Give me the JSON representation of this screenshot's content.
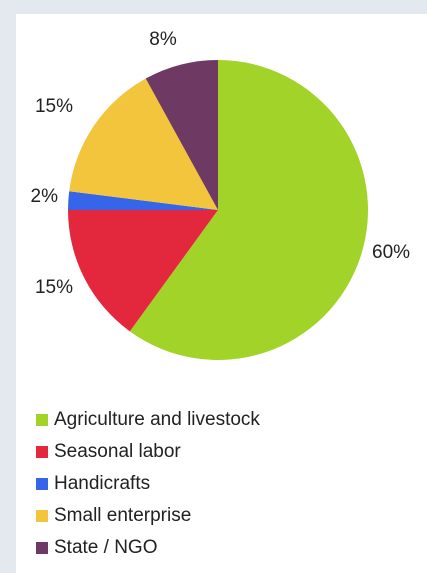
{
  "chart_data": {
    "type": "pie",
    "title": "",
    "slices": [
      {
        "label": "Agriculture and livestock",
        "value": 60,
        "value_label": "60%",
        "color": "#a2d329"
      },
      {
        "label": "Seasonal labor",
        "value": 15,
        "value_label": "15%",
        "color": "#e3283e"
      },
      {
        "label": "Handicrafts",
        "value": 2,
        "value_label": "2%",
        "color": "#3765ea"
      },
      {
        "label": "Small enterprise",
        "value": 15,
        "value_label": "15%",
        "color": "#f2c53d"
      },
      {
        "label": "State / NGO",
        "value": 8,
        "value_label": "8%",
        "color": "#6e3a63"
      }
    ],
    "start_angle_deg": 0,
    "direction": "clockwise",
    "legend_position": "bottom-left"
  }
}
